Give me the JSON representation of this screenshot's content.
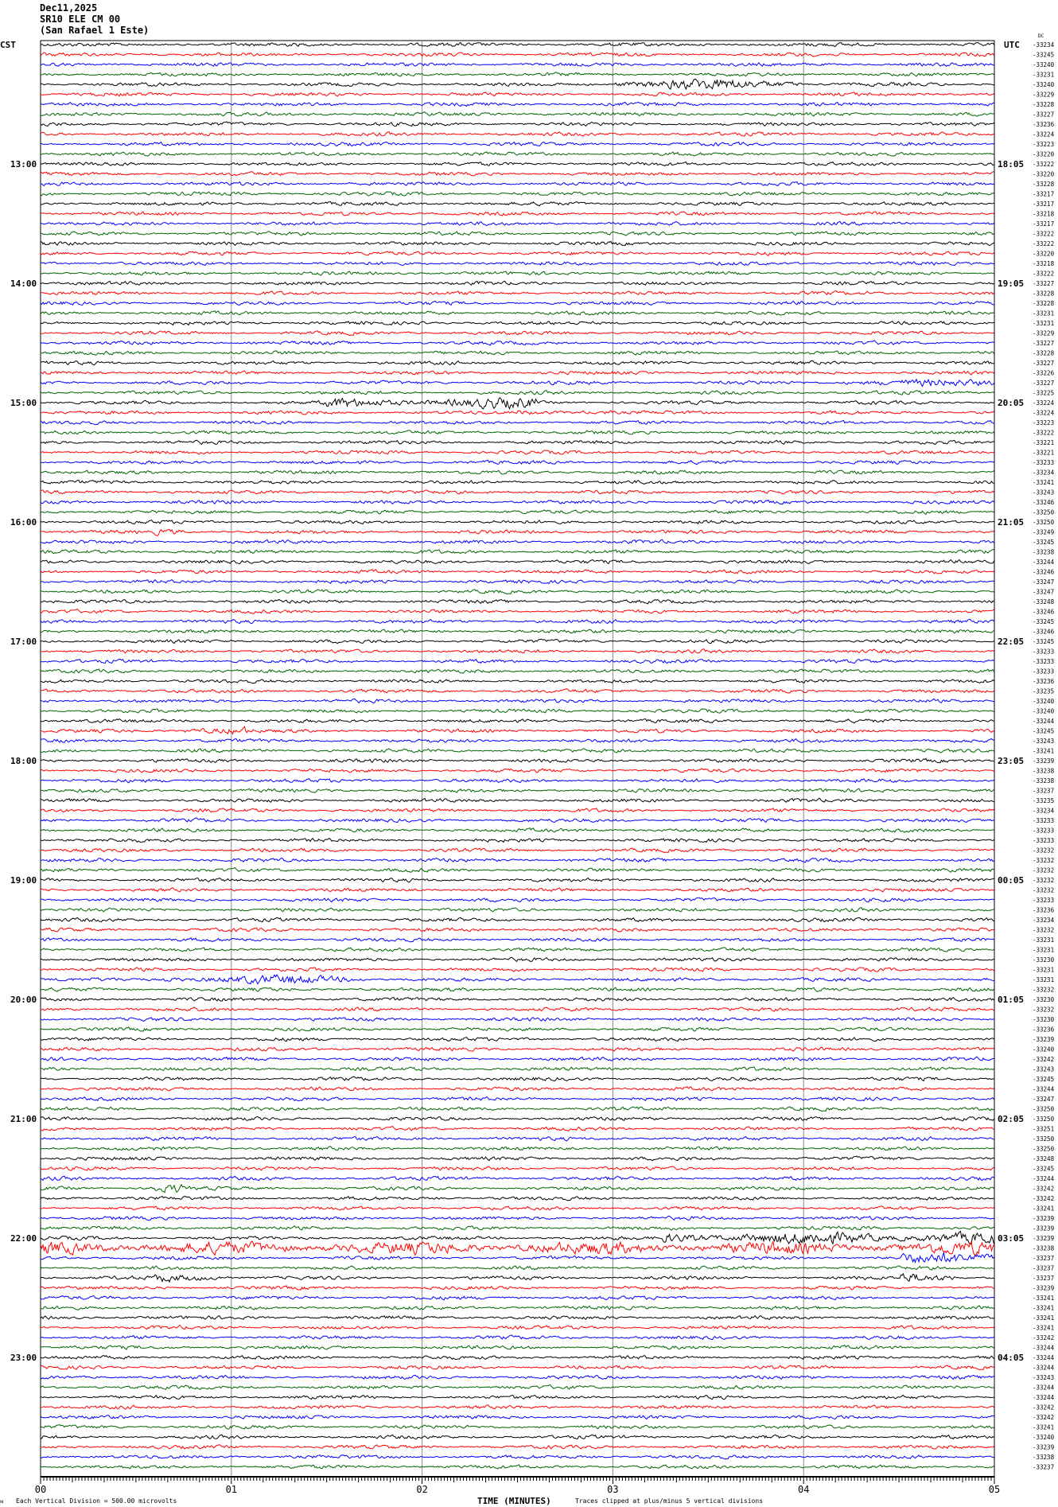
{
  "header": {
    "date": "Dec11,2025",
    "station": "SR10 ELE CM 00",
    "location": "(San Rafael 1 Este)"
  },
  "chart_data": {
    "type": "line",
    "title": "",
    "left_timezone": "CST",
    "right_timezone": "UTC",
    "right_column_tag": "DC",
    "rows_start_cst": "12:00",
    "row_minutes": 5,
    "left_hour_labels": [
      "13:00",
      "14:00",
      "15:00",
      "16:00",
      "17:00",
      "18:00",
      "19:00",
      "20:00",
      "21:00",
      "22:00",
      "23:00"
    ],
    "right_hour_labels": [
      "18:05",
      "19:05",
      "20:05",
      "21:05",
      "22:05",
      "23:05",
      "00:05",
      "01:05",
      "02:05",
      "03:05",
      "04:05"
    ],
    "trace_colors": [
      "#000000",
      "#ff0000",
      "#0000ff",
      "#006400"
    ],
    "dc_offsets": [
      "-33234",
      "-33245",
      "-33240",
      "-33231",
      "-33240",
      "-33229",
      "-33228",
      "-33227",
      "-33236",
      "-33224",
      "-33223",
      "-33220",
      "-33222",
      "-33220",
      "-33228",
      "-33217",
      "-33217",
      "-33218",
      "-33217",
      "-33222",
      "-33222",
      "-33220",
      "-33218",
      "-33222",
      "-33227",
      "-33228",
      "-33228",
      "-33231",
      "-33231",
      "-33229",
      "-33227",
      "-33228",
      "-33227",
      "-33226",
      "-33227",
      "-33225",
      "-33224",
      "-33224",
      "-33223",
      "-33222",
      "-33221",
      "-33221",
      "-33233",
      "-33234",
      "-33241",
      "-33243",
      "-33246",
      "-33250",
      "-33250",
      "-33249",
      "-33245",
      "-33238",
      "-33244",
      "-33246",
      "-33247",
      "-33247",
      "-33248",
      "-33246",
      "-33245",
      "-33246",
      "-33245",
      "-33233",
      "-33233",
      "-33233",
      "-33236",
      "-33235",
      "-33240",
      "-33240",
      "-33244",
      "-33245",
      "-33243",
      "-33241",
      "-33239",
      "-33238",
      "-33238",
      "-33237",
      "-33235",
      "-33234",
      "-33233",
      "-33233",
      "-33233",
      "-33232",
      "-33232",
      "-33232",
      "-33232",
      "-33232",
      "-33233",
      "-33236",
      "-33234",
      "-33232",
      "-33231",
      "-33231",
      "-33230",
      "-33231",
      "-33231",
      "-33232",
      "-33230",
      "-33232",
      "-33230",
      "-33236",
      "-33239",
      "-33240",
      "-33242",
      "-33243",
      "-33245",
      "-33244",
      "-33247",
      "-33250",
      "-33250",
      "-33251",
      "-33250",
      "-33250",
      "-33248",
      "-33245",
      "-33244",
      "-33242",
      "-33242",
      "-33241",
      "-33239",
      "-33239",
      "-33239",
      "-33238",
      "-33237",
      "-33237",
      "-33237",
      "-33239",
      "-33241",
      "-33241",
      "-33241",
      "-33241",
      "-33242",
      "-33244",
      "-33244",
      "-33244",
      "-33243",
      "-33244",
      "-33244",
      "-33242",
      "-33242",
      "-33241",
      "-33240",
      "-33239",
      "-33238",
      "-33237"
    ],
    "events": [
      {
        "row": 5,
        "start_min": 3.0,
        "end_min": 4.0,
        "amplitude": 3
      },
      {
        "row": 35,
        "start_min": 4.2,
        "end_min": 5.0,
        "amplitude": 2
      },
      {
        "row": 37,
        "start_min": 1.5,
        "end_min": 2.6,
        "amplitude": 3
      },
      {
        "row": 38,
        "start_min": 2.5,
        "end_min": 3.0,
        "amplitude": 1.8
      },
      {
        "row": 50,
        "start_min": 0.6,
        "end_min": 0.75,
        "amplitude": 2
      },
      {
        "row": 70,
        "start_min": 0.75,
        "end_min": 1.1,
        "amplitude": 2.5
      },
      {
        "row": 95,
        "start_min": 0.65,
        "end_min": 1.7,
        "amplitude": 2.5
      },
      {
        "row": 116,
        "start_min": 0.55,
        "end_min": 0.75,
        "amplitude": 3
      },
      {
        "row": 121,
        "start_min": 3.25,
        "end_min": 5.0,
        "amplitude": 3.5
      },
      {
        "row": 122,
        "start_min": 0.0,
        "end_min": 5.0,
        "amplitude": 3.5
      },
      {
        "row": 123,
        "start_min": 4.5,
        "end_min": 5.0,
        "amplitude": 3
      },
      {
        "row": 125,
        "start_min": 0.6,
        "end_min": 1.0,
        "amplitude": 2.5
      },
      {
        "row": 125,
        "start_min": 4.5,
        "end_min": 4.8,
        "amplitude": 3
      }
    ],
    "x_ticks": [
      "00",
      "01",
      "02",
      "03",
      "04",
      "05"
    ],
    "xlabel": "TIME (MINUTES)",
    "xlim": [
      0,
      5
    ],
    "grid": true
  },
  "footer": {
    "scale_note": "Each Vertical Division =  500.00 microvolts",
    "clip_note": "Traces clipped at plus/minus 5 vertical divisions"
  }
}
